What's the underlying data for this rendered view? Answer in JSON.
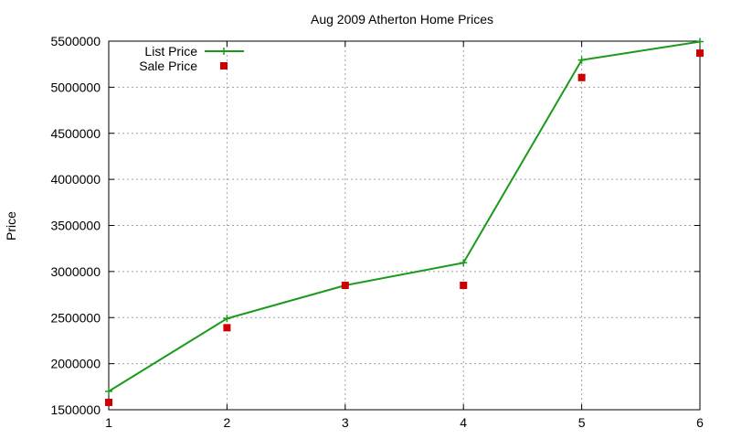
{
  "chart_data": {
    "type": "line",
    "title": "Aug 2009 Atherton Home Prices",
    "xlabel": "",
    "ylabel": "Price",
    "x": [
      1,
      2,
      3,
      4,
      5,
      6
    ],
    "xlim": [
      1,
      6
    ],
    "ylim": [
      1500000,
      5500000
    ],
    "x_ticks": [
      1,
      2,
      3,
      4,
      5,
      6
    ],
    "y_ticks": [
      1500000,
      2000000,
      2500000,
      3000000,
      3500000,
      4000000,
      4500000,
      5000000,
      5500000
    ],
    "grid": true,
    "legend_position": "top-left",
    "series": [
      {
        "name": "List Price",
        "style": "line+cross",
        "color": "#1a9a1a",
        "values": [
          1700000,
          2490000,
          2850000,
          3095000,
          5295000,
          5495000
        ]
      },
      {
        "name": "Sale Price",
        "style": "square-points",
        "color": "#cc0000",
        "values": [
          1580000,
          2390000,
          2850000,
          2850000,
          5105000,
          5370000
        ]
      }
    ]
  }
}
